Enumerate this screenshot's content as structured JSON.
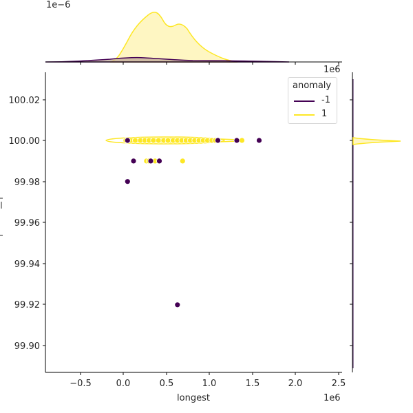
{
  "chart_data": {
    "type": "scatter",
    "subtype": "jointplot",
    "title": "",
    "xlabel": "longest",
    "ylabel": "",
    "x_offset_label": "1e6",
    "top_marginal_offset_label": "1e−6",
    "top_marginal_x_offset_label": "1e6",
    "xlim": [
      -0.88,
      2.52
    ],
    "ylim": [
      99.8875,
      100.0325
    ],
    "x_ticks": [
      -0.5,
      0.0,
      0.5,
      1.0,
      1.5,
      2.0,
      2.5
    ],
    "x_tick_labels": [
      "−0.5",
      "0.0",
      "0.5",
      "1.0",
      "1.5",
      "2.0",
      "2.5"
    ],
    "y_ticks": [
      100.02,
      100.0,
      99.98,
      99.96,
      99.94,
      99.92,
      99.9
    ],
    "y_tick_labels": [
      "100.02",
      "100.00",
      "99.98",
      "99.96",
      "99.94",
      "99.92",
      "99.90"
    ],
    "grid": false,
    "legend": {
      "title": "anomaly",
      "position": "upper right",
      "entries": [
        {
          "label": "-1",
          "color": "#440154"
        },
        {
          "label": "1",
          "color": "#fde725"
        }
      ]
    },
    "series": [
      {
        "name": "-1",
        "color": "#440154",
        "points": [
          {
            "x": 0.05,
            "y": 100.0
          },
          {
            "x": 1.1,
            "y": 100.0
          },
          {
            "x": 1.32,
            "y": 100.0
          },
          {
            "x": 1.58,
            "y": 100.0
          },
          {
            "x": 0.12,
            "y": 99.99
          },
          {
            "x": 0.32,
            "y": 99.99
          },
          {
            "x": 0.42,
            "y": 99.99
          },
          {
            "x": 0.05,
            "y": 99.98
          },
          {
            "x": 0.63,
            "y": 99.92
          }
        ]
      },
      {
        "name": "1",
        "color": "#fde725",
        "points": [
          {
            "x": 0.03,
            "y": 100.0
          },
          {
            "x": 0.09,
            "y": 100.0
          },
          {
            "x": 0.14,
            "y": 100.0
          },
          {
            "x": 0.2,
            "y": 100.0
          },
          {
            "x": 0.25,
            "y": 100.0
          },
          {
            "x": 0.3,
            "y": 100.0
          },
          {
            "x": 0.35,
            "y": 100.0
          },
          {
            "x": 0.41,
            "y": 100.0
          },
          {
            "x": 0.47,
            "y": 100.0
          },
          {
            "x": 0.52,
            "y": 100.0
          },
          {
            "x": 0.58,
            "y": 100.0
          },
          {
            "x": 0.63,
            "y": 100.0
          },
          {
            "x": 0.68,
            "y": 100.0
          },
          {
            "x": 0.73,
            "y": 100.0
          },
          {
            "x": 0.78,
            "y": 100.0
          },
          {
            "x": 0.83,
            "y": 100.0
          },
          {
            "x": 0.88,
            "y": 100.0
          },
          {
            "x": 0.93,
            "y": 100.0
          },
          {
            "x": 0.98,
            "y": 100.0
          },
          {
            "x": 1.03,
            "y": 100.0
          },
          {
            "x": 1.07,
            "y": 100.0
          },
          {
            "x": 1.38,
            "y": 100.0
          },
          {
            "x": 0.27,
            "y": 99.99
          },
          {
            "x": 0.3,
            "y": 99.99
          },
          {
            "x": 0.37,
            "y": 99.99
          },
          {
            "x": 0.69,
            "y": 99.99
          }
        ]
      }
    ],
    "kde_contour": {
      "series": "1",
      "x_range": [
        -0.2,
        1.35
      ],
      "y_center": 100.0
    },
    "top_marginal_kde": {
      "series": [
        {
          "name": "1",
          "color": "#fde725",
          "peaks": [
            {
              "x": 0.32,
              "density": 1.0
            },
            {
              "x": 0.65,
              "density": 0.75
            }
          ],
          "support": [
            -0.1,
            1.3
          ]
        },
        {
          "name": "-1",
          "color": "#440154",
          "peak": {
            "x": 0.2,
            "density": 0.1
          },
          "support": [
            -0.9,
            2.5
          ]
        }
      ]
    },
    "right_marginal_kde": {
      "series": [
        {
          "name": "1",
          "color": "#fde725",
          "peak_y": 100.0,
          "narrow": true
        }
      ]
    }
  }
}
